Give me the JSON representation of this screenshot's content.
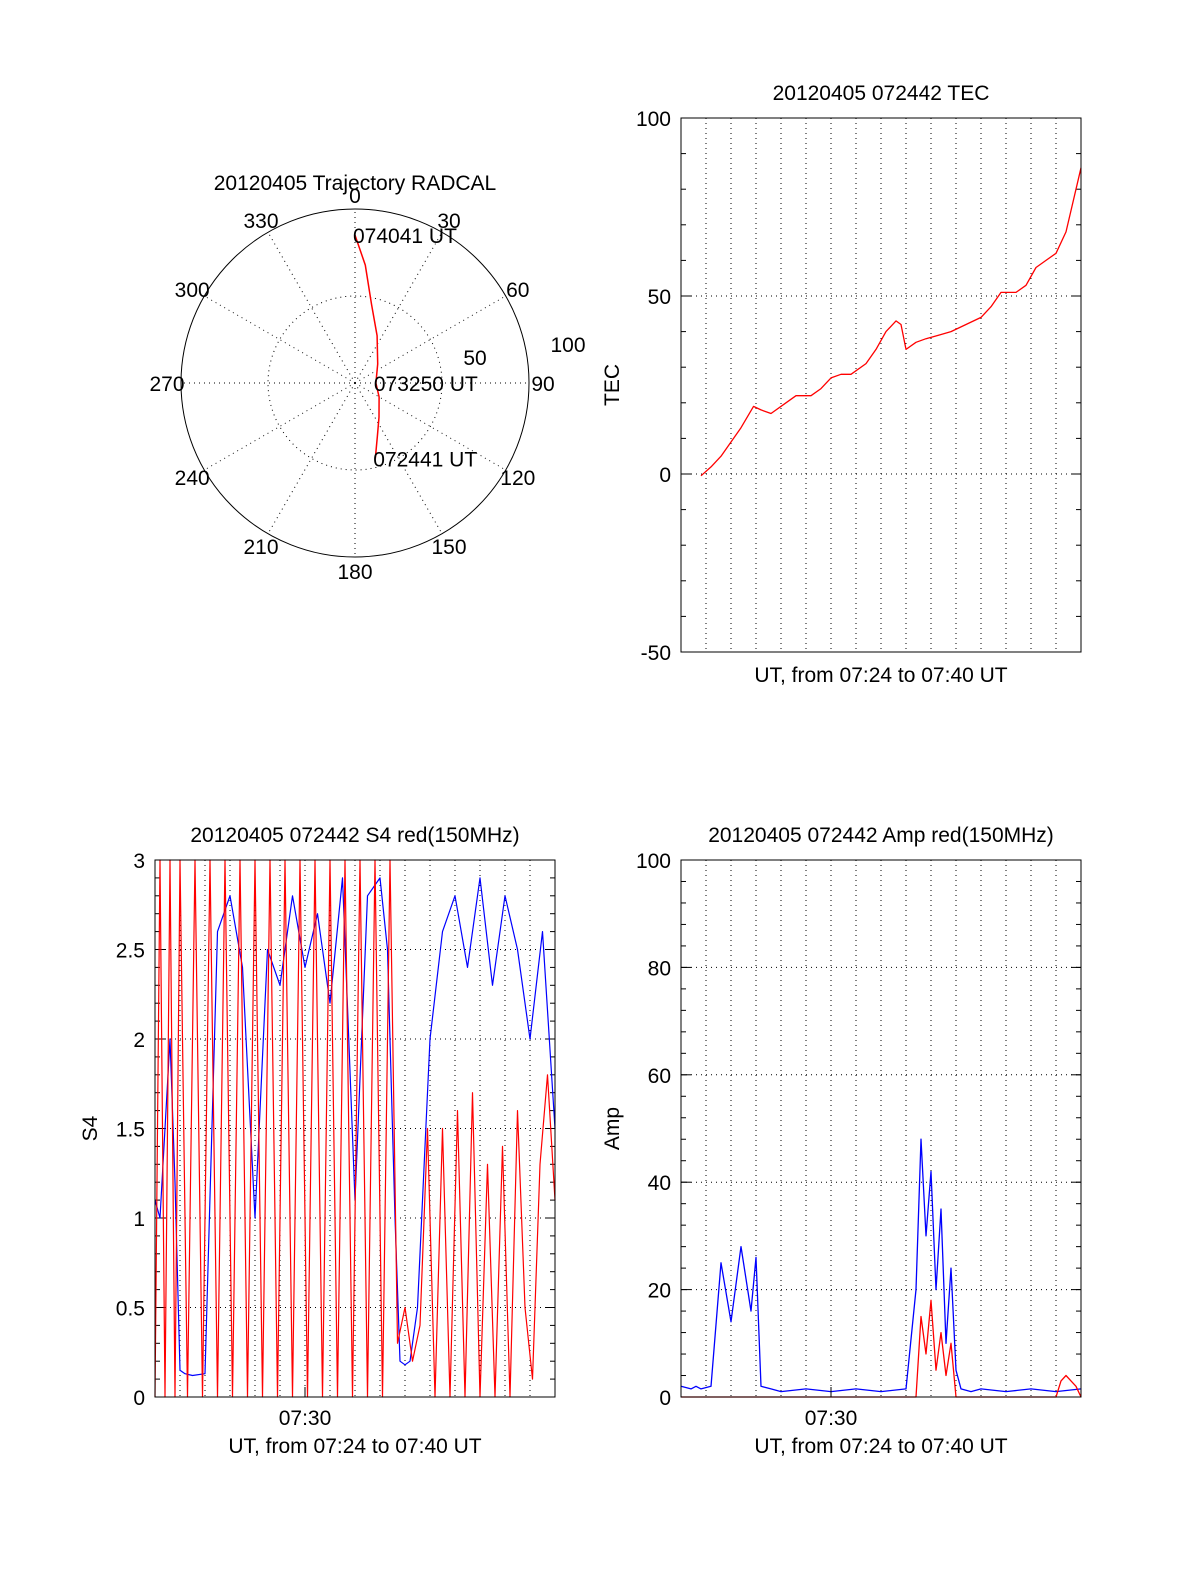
{
  "chart_data": [
    {
      "type": "polar",
      "title": "20120405 Trajectory RADCAL",
      "angle_labels": [
        "0",
        "30",
        "60",
        "90",
        "120",
        "150",
        "180",
        "210",
        "240",
        "270",
        "300",
        "330"
      ],
      "radius_labels": [
        "50",
        "100"
      ],
      "radius_max": 100,
      "grid": true,
      "series": [
        {
          "color": "#ff0000",
          "points": [
            {
              "az": 165,
              "el_dist": 45
            },
            {
              "az": 157,
              "el_dist": 33
            },
            {
              "az": 145,
              "el_dist": 24
            },
            {
              "az": 120,
              "el_dist": 16
            },
            {
              "az": 90,
              "el_dist": 12
            },
            {
              "az": 50,
              "el_dist": 17
            },
            {
              "az": 25,
              "el_dist": 30
            },
            {
              "az": 12,
              "el_dist": 46
            },
            {
              "az": 5,
              "el_dist": 68
            },
            {
              "az": 0,
              "el_dist": 85
            }
          ]
        }
      ],
      "annotations": [
        {
          "text": "074041 UT",
          "az": 0,
          "el_dist": 85
        },
        {
          "text": "073250 UT",
          "az": 90,
          "el_dist": 12
        },
        {
          "text": "072441 UT",
          "az": 165,
          "el_dist": 45
        }
      ]
    },
    {
      "type": "line",
      "title": "20120405 072442 TEC",
      "ylabel": "TEC",
      "xlabel": "UT, from 07:24 to 07:40 UT",
      "ylim": [
        -50,
        100
      ],
      "yticks": [
        "100",
        "50",
        "0",
        "-50"
      ],
      "x_range_minutes": [
        0,
        16
      ],
      "grid": true,
      "series": [
        {
          "color": "#ff0000",
          "x": [
            0.8,
            1.2,
            1.6,
            2.0,
            2.4,
            2.9,
            3.2,
            3.6,
            4.2,
            4.6,
            5.2,
            5.6,
            6.0,
            6.4,
            6.8,
            7.4,
            7.8,
            8.2,
            8.6,
            8.8,
            9.0,
            9.4,
            9.8,
            10.3,
            10.8,
            11.4,
            12.0,
            12.4,
            12.8,
            13.4,
            13.8,
            14.2,
            14.6,
            15.0,
            15.4,
            16.0
          ],
          "y": [
            -0.5,
            2,
            5,
            9,
            13,
            19,
            18,
            17,
            20,
            22,
            22,
            24,
            27,
            28,
            28,
            31,
            35,
            40,
            43,
            42,
            35,
            37,
            38,
            39,
            40,
            42,
            44,
            47,
            51,
            51,
            53,
            58,
            60,
            62,
            68,
            86
          ]
        }
      ]
    },
    {
      "type": "line",
      "title": "20120405 072442 S4 red(150MHz)",
      "ylabel": "S4",
      "xlabel": "UT, from 07:24 to 07:40 UT",
      "ylim": [
        0,
        3
      ],
      "yticks": [
        "3",
        "2.5",
        "2",
        "1.5",
        "1",
        "0.5",
        "0"
      ],
      "xticks": [
        "07:30"
      ],
      "x_range_minutes": [
        0,
        16
      ],
      "grid": true,
      "series": [
        {
          "color": "#0000ff",
          "x": [
            0.0,
            0.2,
            0.4,
            0.6,
            0.8,
            1.0,
            1.2,
            1.5,
            2.0,
            2.5,
            3.0,
            3.5,
            4.0,
            4.5,
            5.0,
            5.5,
            6.0,
            6.5,
            7.0,
            7.5,
            8.0,
            8.5,
            9.0,
            9.3,
            9.6,
            9.8,
            10.0,
            10.2,
            10.5,
            11.0,
            11.5,
            12.0,
            12.5,
            13.0,
            13.5,
            14.0,
            14.5,
            15.0,
            15.5,
            16.0
          ],
          "y": [
            1.1,
            1.0,
            1.5,
            2.0,
            1.2,
            0.15,
            0.13,
            0.12,
            0.13,
            2.6,
            2.8,
            2.4,
            1.0,
            2.5,
            2.3,
            2.8,
            2.4,
            2.7,
            2.2,
            2.9,
            1.1,
            2.8,
            2.9,
            2.5,
            1.0,
            0.2,
            0.18,
            0.2,
            0.5,
            2.0,
            2.6,
            2.8,
            2.4,
            2.9,
            2.3,
            2.8,
            2.5,
            2.0,
            2.6,
            1.5
          ]
        },
        {
          "color": "#ff0000",
          "x": [
            0.0,
            0.2,
            0.4,
            0.6,
            0.8,
            1.0,
            1.3,
            1.6,
            1.9,
            2.2,
            2.5,
            2.8,
            3.1,
            3.4,
            3.7,
            4.0,
            4.3,
            4.6,
            4.9,
            5.2,
            5.5,
            5.8,
            6.1,
            6.4,
            6.7,
            7.0,
            7.3,
            7.6,
            7.9,
            8.2,
            8.5,
            8.8,
            9.1,
            9.4,
            9.7,
            10.0,
            10.3,
            10.6,
            10.9,
            11.2,
            11.5,
            11.8,
            12.1,
            12.4,
            12.7,
            13.0,
            13.3,
            13.6,
            13.9,
            14.2,
            14.5,
            14.8,
            15.1,
            15.4,
            15.7,
            16.0
          ],
          "y": [
            0.0,
            3.0,
            0.0,
            3.0,
            0.0,
            3.0,
            0.0,
            3.0,
            0.0,
            3.0,
            0.0,
            3.0,
            0.0,
            3.0,
            0.0,
            3.0,
            0.0,
            3.0,
            0.0,
            3.0,
            0.0,
            3.0,
            0.0,
            3.0,
            0.0,
            3.0,
            0.0,
            3.0,
            0.0,
            3.0,
            0.0,
            3.0,
            0.0,
            3.0,
            0.3,
            0.5,
            0.2,
            0.4,
            1.5,
            0.0,
            1.5,
            0.0,
            1.6,
            0.0,
            1.7,
            0.0,
            1.3,
            0.0,
            1.4,
            0.0,
            1.6,
            0.5,
            0.1,
            1.3,
            1.8,
            1.1
          ]
        }
      ]
    },
    {
      "type": "line",
      "title": "20120405 072442 Amp red(150MHz)",
      "ylabel": "Amp",
      "xlabel": "UT, from 07:24 to 07:40 UT",
      "ylim": [
        0,
        100
      ],
      "yticks": [
        "100",
        "80",
        "60",
        "40",
        "20",
        "0"
      ],
      "xticks": [
        "07:30"
      ],
      "x_range_minutes": [
        0,
        16
      ],
      "grid": true,
      "series": [
        {
          "color": "#0000ff",
          "x": [
            0.0,
            0.4,
            0.6,
            0.8,
            1.2,
            1.6,
            2.0,
            2.4,
            2.8,
            3.0,
            3.2,
            3.6,
            4.0,
            5.0,
            6.0,
            7.0,
            8.0,
            9.0,
            9.4,
            9.6,
            9.8,
            10.0,
            10.2,
            10.4,
            10.6,
            10.8,
            11.0,
            11.2,
            11.6,
            12.0,
            13.0,
            14.0,
            15.0,
            16.0
          ],
          "y": [
            2,
            1.5,
            2,
            1.5,
            2,
            25,
            14,
            28,
            16,
            26,
            2,
            1.5,
            1,
            1.5,
            1,
            1.5,
            1,
            1.5,
            20,
            48,
            30,
            42,
            20,
            35,
            10,
            24,
            5,
            1.5,
            1,
            1.5,
            1,
            1.5,
            1,
            1.5
          ]
        },
        {
          "color": "#ff0000",
          "x": [
            0.0,
            1.6,
            3.2,
            9.4,
            9.6,
            9.8,
            10.0,
            10.2,
            10.4,
            10.6,
            10.8,
            11.0,
            15.0,
            15.2,
            15.4,
            15.6,
            15.8,
            16.0
          ],
          "y": [
            0,
            0,
            0,
            0,
            15,
            8,
            18,
            5,
            12,
            4,
            10,
            0,
            0,
            3,
            4,
            3,
            2,
            0
          ]
        }
      ]
    }
  ]
}
